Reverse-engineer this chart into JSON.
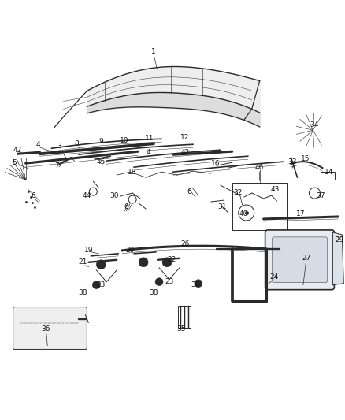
{
  "bg_color": "#ffffff",
  "line_color": "#2a2a2a",
  "figsize": [
    4.38,
    5.33
  ],
  "dpi": 100
}
